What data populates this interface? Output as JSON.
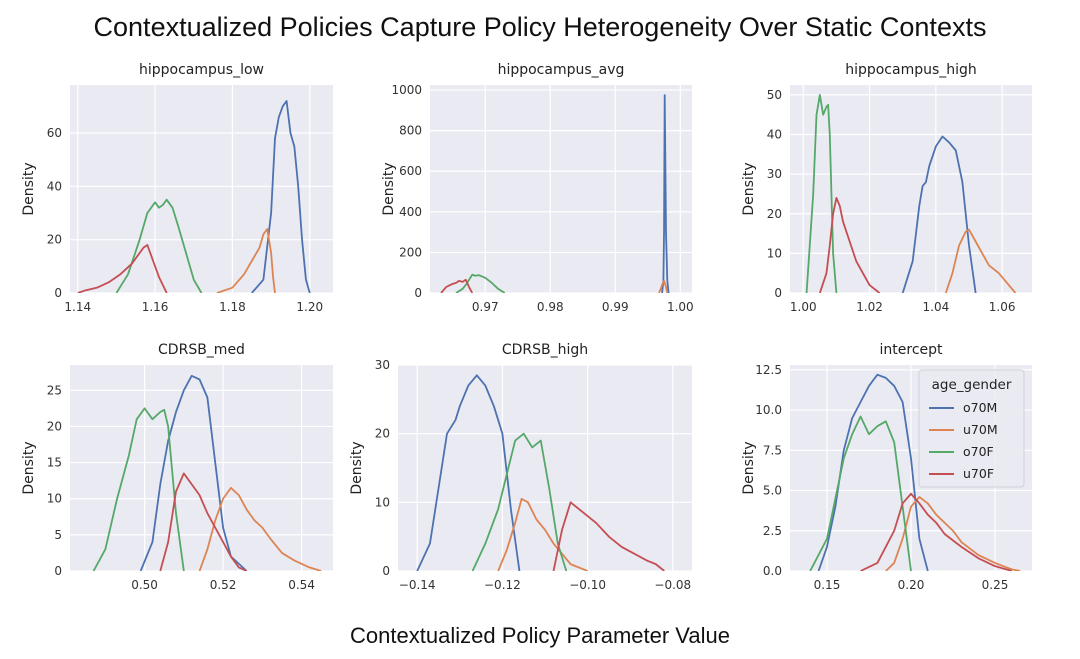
{
  "figure": {
    "title": "Contextualized Policies Capture Policy Heterogeneity Over Static Contexts",
    "xlabel": "Contextualized Policy Parameter Value"
  },
  "legend": {
    "title": "age_gender",
    "entries": [
      "o70M",
      "u70M",
      "o70F",
      "u70F"
    ]
  },
  "colors": {
    "o70M": "#4c72b0",
    "u70M": "#dd8452",
    "o70F": "#55a868",
    "u70F": "#c44e52",
    "panel_bg": "#eaeaf2",
    "grid": "#ffffff"
  },
  "chart_data": [
    {
      "type": "line",
      "title": "hippocampus_low",
      "ylabel": "Density",
      "xlim": [
        1.138,
        1.206
      ],
      "ylim": [
        0,
        78
      ],
      "xticks": [
        1.14,
        1.16,
        1.18,
        1.2
      ],
      "xtick_labels": [
        "1.14",
        "1.16",
        "1.18",
        "1.20"
      ],
      "yticks": [
        0,
        20,
        40,
        60
      ],
      "ytick_labels": [
        "0",
        "20",
        "40",
        "60"
      ],
      "series": [
        {
          "name": "o70M",
          "x": [
            1.185,
            1.188,
            1.19,
            1.191,
            1.192,
            1.193,
            1.194,
            1.195,
            1.196,
            1.197,
            1.198,
            1.199,
            1.2
          ],
          "y": [
            0,
            5,
            30,
            58,
            66,
            70,
            72,
            60,
            55,
            40,
            20,
            5,
            0
          ]
        },
        {
          "name": "u70M",
          "x": [
            1.176,
            1.18,
            1.183,
            1.185,
            1.187,
            1.188,
            1.189,
            1.19,
            1.1905,
            1.191
          ],
          "y": [
            0,
            2,
            7,
            12,
            17,
            22,
            24,
            15,
            6,
            0
          ]
        },
        {
          "name": "o70F",
          "x": [
            1.15,
            1.153,
            1.156,
            1.158,
            1.16,
            1.161,
            1.162,
            1.163,
            1.1645,
            1.166,
            1.168,
            1.17,
            1.172
          ],
          "y": [
            0,
            7,
            20,
            30,
            34,
            32,
            33,
            35,
            32,
            25,
            15,
            5,
            0
          ]
        },
        {
          "name": "u70F",
          "x": [
            1.14,
            1.142,
            1.145,
            1.148,
            1.151,
            1.154,
            1.156,
            1.157,
            1.158,
            1.159,
            1.161,
            1.163
          ],
          "y": [
            0,
            1,
            2,
            4,
            7,
            11,
            15,
            17,
            18,
            14,
            6,
            0
          ]
        }
      ]
    },
    {
      "type": "line",
      "title": "hippocampus_avg",
      "ylabel": "Density",
      "xlim": [
        0.9615,
        1.0018
      ],
      "ylim": [
        0,
        1025
      ],
      "xticks": [
        0.97,
        0.98,
        0.99,
        1.0
      ],
      "xtick_labels": [
        "0.97",
        "0.98",
        "0.99",
        "1.00"
      ],
      "yticks": [
        0,
        200,
        400,
        600,
        800,
        1000
      ],
      "ytick_labels": [
        "0",
        "200",
        "400",
        "600",
        "800",
        "1000"
      ],
      "series": [
        {
          "name": "o70M",
          "x": [
            0.9972,
            0.9974,
            0.9975,
            0.9976,
            0.9977,
            0.9978,
            0.998,
            0.9982
          ],
          "y": [
            0,
            60,
            300,
            975,
            650,
            300,
            60,
            0
          ]
        },
        {
          "name": "u70M",
          "x": [
            0.9967,
            0.997,
            0.9972,
            0.9975,
            0.9978,
            0.998
          ],
          "y": [
            0,
            20,
            40,
            60,
            30,
            0
          ]
        },
        {
          "name": "o70F",
          "x": [
            0.9655,
            0.9665,
            0.967,
            0.9675,
            0.968,
            0.9685,
            0.969,
            0.97,
            0.971,
            0.972,
            0.973
          ],
          "y": [
            0,
            20,
            40,
            65,
            90,
            85,
            88,
            75,
            50,
            20,
            0
          ]
        },
        {
          "name": "u70F",
          "x": [
            0.9632,
            0.964,
            0.965,
            0.9655,
            0.966,
            0.9665,
            0.967,
            0.9675,
            0.968
          ],
          "y": [
            0,
            30,
            45,
            50,
            60,
            55,
            65,
            30,
            0
          ]
        }
      ]
    },
    {
      "type": "line",
      "title": "hippocampus_high",
      "ylabel": "Density",
      "xlim": [
        0.996,
        1.069
      ],
      "ylim": [
        0,
        52.5
      ],
      "xticks": [
        1.0,
        1.02,
        1.04,
        1.06
      ],
      "xtick_labels": [
        "1.00",
        "1.02",
        "1.04",
        "1.06"
      ],
      "yticks": [
        0,
        10,
        20,
        30,
        40,
        50
      ],
      "ytick_labels": [
        "0",
        "10",
        "20",
        "30",
        "40",
        "50"
      ],
      "series": [
        {
          "name": "o70M",
          "x": [
            1.03,
            1.033,
            1.035,
            1.036,
            1.037,
            1.038,
            1.04,
            1.042,
            1.044,
            1.046,
            1.048,
            1.05,
            1.052
          ],
          "y": [
            0,
            8,
            22,
            27,
            28,
            32,
            37,
            39.5,
            38,
            36,
            28,
            12,
            0
          ]
        },
        {
          "name": "u70M",
          "x": [
            1.043,
            1.045,
            1.047,
            1.049,
            1.05,
            1.052,
            1.054,
            1.056,
            1.059,
            1.062,
            1.064
          ],
          "y": [
            0,
            5,
            12,
            15.5,
            16,
            13,
            10,
            7,
            5,
            2,
            0
          ]
        },
        {
          "name": "o70F",
          "x": [
            1.001,
            1.003,
            1.004,
            1.005,
            1.006,
            1.007,
            1.0075,
            1.008,
            1.0085,
            1.009,
            1.01
          ],
          "y": [
            0,
            25,
            45,
            50,
            45,
            47,
            47.5,
            40,
            25,
            10,
            0
          ]
        },
        {
          "name": "u70F",
          "x": [
            1.005,
            1.007,
            1.008,
            1.009,
            1.01,
            1.011,
            1.012,
            1.014,
            1.016,
            1.018,
            1.02,
            1.023
          ],
          "y": [
            0,
            5,
            12,
            20,
            24,
            22,
            18,
            13,
            8,
            5,
            2,
            0
          ]
        }
      ]
    },
    {
      "type": "line",
      "title": "CDRSB_med",
      "ylabel": "Density",
      "xlim": [
        0.481,
        0.548
      ],
      "ylim": [
        0,
        28.5
      ],
      "xticks": [
        0.5,
        0.52,
        0.54
      ],
      "xtick_labels": [
        "0.50",
        "0.52",
        "0.54"
      ],
      "yticks": [
        0,
        5,
        10,
        15,
        20,
        25
      ],
      "ytick_labels": [
        "0",
        "5",
        "10",
        "15",
        "20",
        "25"
      ],
      "series": [
        {
          "name": "o70M",
          "x": [
            0.499,
            0.502,
            0.504,
            0.506,
            0.508,
            0.51,
            0.512,
            0.514,
            0.516,
            0.518,
            0.52,
            0.522,
            0.524,
            0.526
          ],
          "y": [
            0,
            4,
            12,
            18,
            22,
            25,
            27,
            26.5,
            24,
            15,
            6,
            2,
            1,
            0
          ]
        },
        {
          "name": "u70M",
          "x": [
            0.514,
            0.516,
            0.518,
            0.52,
            0.522,
            0.524,
            0.526,
            0.528,
            0.53,
            0.532,
            0.535,
            0.538,
            0.542,
            0.545
          ],
          "y": [
            0,
            3,
            7,
            10,
            11.5,
            10.5,
            8.5,
            7,
            6,
            4.5,
            2.5,
            1.5,
            0.5,
            0
          ]
        },
        {
          "name": "o70F",
          "x": [
            0.487,
            0.49,
            0.493,
            0.496,
            0.498,
            0.5,
            0.502,
            0.504,
            0.505,
            0.506,
            0.508,
            0.51
          ],
          "y": [
            0,
            3,
            10,
            16,
            21,
            22.5,
            21,
            22,
            22.3,
            20,
            8,
            0
          ]
        },
        {
          "name": "u70F",
          "x": [
            0.504,
            0.506,
            0.508,
            0.51,
            0.512,
            0.514,
            0.516,
            0.518,
            0.52,
            0.522,
            0.524,
            0.526
          ],
          "y": [
            0,
            4,
            11,
            13.5,
            12,
            10.5,
            8,
            6,
            4,
            2,
            0.5,
            0
          ]
        }
      ]
    },
    {
      "type": "line",
      "title": "CDRSB_high",
      "ylabel": "Density",
      "xlim": [
        -0.1445,
        -0.0755
      ],
      "ylim": [
        0,
        30
      ],
      "xticks": [
        -0.14,
        -0.12,
        -0.1,
        -0.08
      ],
      "xtick_labels": [
        "−0.14",
        "−0.12",
        "−0.10",
        "−0.08"
      ],
      "yticks": [
        0,
        10,
        20,
        30
      ],
      "ytick_labels": [
        "0",
        "10",
        "20",
        "30"
      ],
      "series": [
        {
          "name": "o70M",
          "x": [
            -0.14,
            -0.137,
            -0.135,
            -0.133,
            -0.131,
            -0.13,
            -0.128,
            -0.126,
            -0.124,
            -0.122,
            -0.12,
            -0.118,
            -0.116
          ],
          "y": [
            0,
            4,
            12,
            20,
            22,
            24,
            27,
            28.5,
            27,
            24,
            20,
            9,
            0
          ]
        },
        {
          "name": "u70M",
          "x": [
            -0.121,
            -0.119,
            -0.117,
            -0.1155,
            -0.114,
            -0.112,
            -0.11,
            -0.108,
            -0.106,
            -0.104,
            -0.1
          ],
          "y": [
            0,
            3,
            7,
            10.5,
            10,
            7.5,
            6,
            4,
            2.5,
            1,
            0
          ]
        },
        {
          "name": "o70F",
          "x": [
            -0.127,
            -0.124,
            -0.121,
            -0.119,
            -0.117,
            -0.115,
            -0.113,
            -0.111,
            -0.109,
            -0.107,
            -0.105
          ],
          "y": [
            0,
            4,
            9,
            14,
            19,
            20,
            18,
            19,
            12,
            4,
            0
          ]
        },
        {
          "name": "u70F",
          "x": [
            -0.108,
            -0.106,
            -0.104,
            -0.102,
            -0.1,
            -0.098,
            -0.095,
            -0.092,
            -0.089,
            -0.086,
            -0.084,
            -0.082
          ],
          "y": [
            0,
            6,
            10,
            9,
            8,
            7,
            5,
            3.5,
            2.5,
            1.5,
            1,
            0
          ]
        }
      ]
    },
    {
      "type": "line",
      "title": "intercept",
      "ylabel": "Density",
      "xlim": [
        0.128,
        0.272
      ],
      "ylim": [
        0,
        12.8
      ],
      "xticks": [
        0.15,
        0.2,
        0.25
      ],
      "xtick_labels": [
        "0.15",
        "0.20",
        "0.25"
      ],
      "yticks": [
        0,
        2.5,
        5,
        7.5,
        10,
        12.5
      ],
      "ytick_labels": [
        "0.0",
        "2.5",
        "5.0",
        "7.5",
        "10.0",
        "12.5"
      ],
      "series": [
        {
          "name": "o70M",
          "x": [
            0.145,
            0.15,
            0.155,
            0.16,
            0.165,
            0.17,
            0.175,
            0.18,
            0.185,
            0.19,
            0.195,
            0.2,
            0.205,
            0.21
          ],
          "y": [
            0,
            1.5,
            4,
            7.5,
            9.5,
            10.5,
            11.5,
            12.2,
            12,
            11.5,
            10.5,
            7,
            2,
            0
          ]
        },
        {
          "name": "u70M",
          "x": [
            0.185,
            0.19,
            0.195,
            0.2,
            0.205,
            0.21,
            0.215,
            0.22,
            0.225,
            0.23,
            0.24,
            0.25,
            0.255,
            0.26,
            0.265
          ],
          "y": [
            0,
            0.5,
            2,
            4,
            4.6,
            4.2,
            3.5,
            3,
            2.5,
            1.8,
            1,
            0.5,
            0.3,
            0.1,
            0
          ]
        },
        {
          "name": "o70F",
          "x": [
            0.14,
            0.15,
            0.155,
            0.16,
            0.165,
            0.17,
            0.175,
            0.18,
            0.185,
            0.19,
            0.195,
            0.2
          ],
          "y": [
            0,
            2,
            4.5,
            7,
            8.5,
            9.6,
            8.5,
            9,
            9.3,
            8,
            4,
            0
          ]
        },
        {
          "name": "u70F",
          "x": [
            0.17,
            0.18,
            0.19,
            0.195,
            0.2,
            0.205,
            0.21,
            0.215,
            0.22,
            0.23,
            0.24,
            0.25,
            0.26
          ],
          "y": [
            0,
            0.5,
            2.5,
            4.2,
            4.8,
            4.2,
            3.5,
            3,
            2.3,
            1.5,
            0.8,
            0.3,
            0
          ]
        }
      ]
    }
  ]
}
